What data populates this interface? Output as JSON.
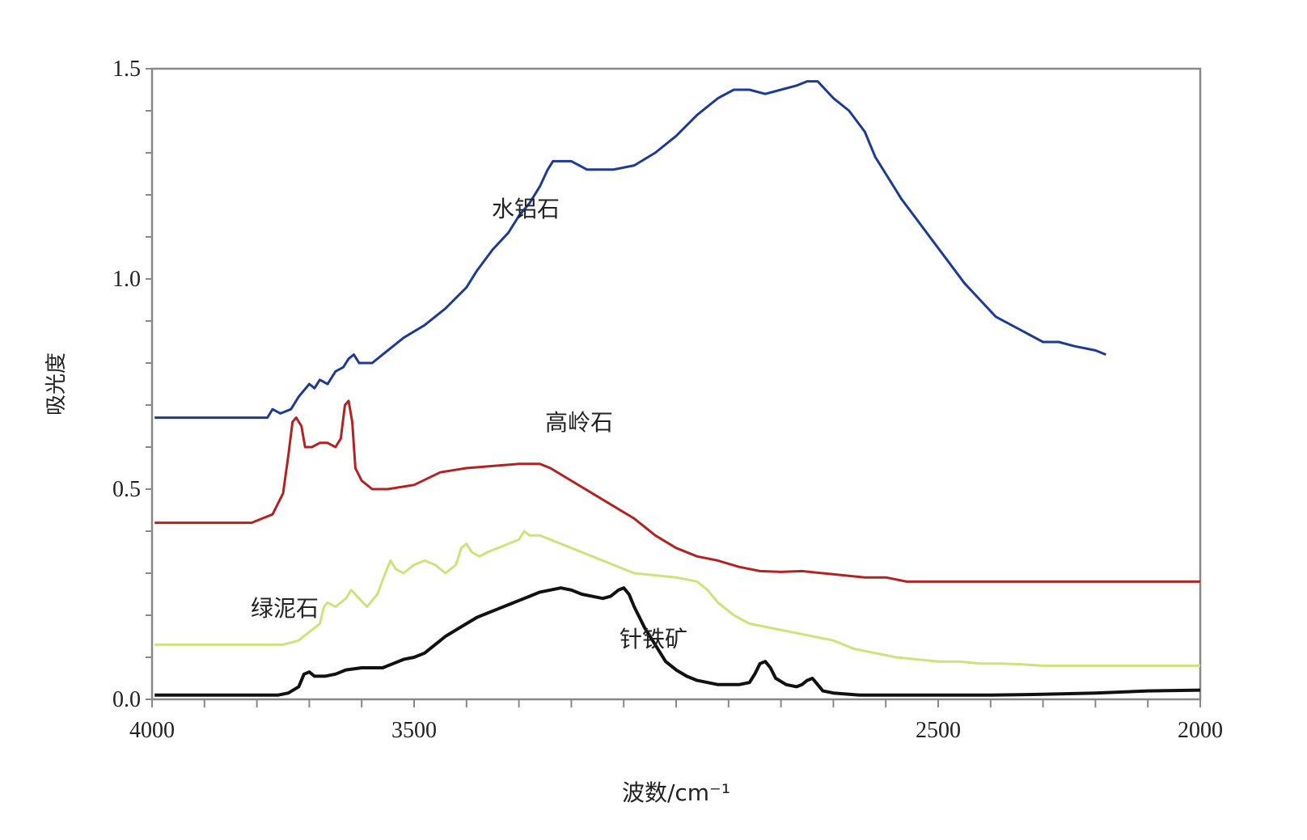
{
  "chart_data": {
    "type": "line",
    "xlabel": "波数/cm⁻¹",
    "ylabel": "吸光度",
    "xlim": [
      4000,
      2000
    ],
    "ylim": [
      0,
      1.5
    ],
    "x_ticks": [
      "4000",
      "3500",
      "2500",
      "2000"
    ],
    "y_ticks": [
      "0.0",
      "0.5",
      "1.0",
      "1.5"
    ],
    "grid": false,
    "legend": "none",
    "series": [
      {
        "name": "水铝石",
        "color": "#1f3a93",
        "points": [
          [
            3995,
            0.67
          ],
          [
            3780,
            0.67
          ],
          [
            3770,
            0.69
          ],
          [
            3755,
            0.68
          ],
          [
            3735,
            0.69
          ],
          [
            3720,
            0.72
          ],
          [
            3700,
            0.75
          ],
          [
            3690,
            0.74
          ],
          [
            3680,
            0.76
          ],
          [
            3665,
            0.75
          ],
          [
            3650,
            0.78
          ],
          [
            3635,
            0.79
          ],
          [
            3625,
            0.81
          ],
          [
            3615,
            0.82
          ],
          [
            3605,
            0.8
          ],
          [
            3580,
            0.8
          ],
          [
            3560,
            0.82
          ],
          [
            3520,
            0.86
          ],
          [
            3480,
            0.89
          ],
          [
            3440,
            0.93
          ],
          [
            3400,
            0.98
          ],
          [
            3380,
            1.02
          ],
          [
            3350,
            1.07
          ],
          [
            3320,
            1.11
          ],
          [
            3300,
            1.15
          ],
          [
            3280,
            1.18
          ],
          [
            3260,
            1.22
          ],
          [
            3245,
            1.26
          ],
          [
            3235,
            1.28
          ],
          [
            3220,
            1.28
          ],
          [
            3200,
            1.28
          ],
          [
            3185,
            1.27
          ],
          [
            3170,
            1.26
          ],
          [
            3150,
            1.26
          ],
          [
            3120,
            1.26
          ],
          [
            3080,
            1.27
          ],
          [
            3040,
            1.3
          ],
          [
            3000,
            1.34
          ],
          [
            2960,
            1.39
          ],
          [
            2920,
            1.43
          ],
          [
            2890,
            1.45
          ],
          [
            2860,
            1.45
          ],
          [
            2830,
            1.44
          ],
          [
            2800,
            1.45
          ],
          [
            2770,
            1.46
          ],
          [
            2750,
            1.47
          ],
          [
            2730,
            1.47
          ],
          [
            2715,
            1.45
          ],
          [
            2700,
            1.43
          ],
          [
            2670,
            1.4
          ],
          [
            2640,
            1.35
          ],
          [
            2620,
            1.29
          ],
          [
            2600,
            1.25
          ],
          [
            2570,
            1.19
          ],
          [
            2540,
            1.14
          ],
          [
            2510,
            1.09
          ],
          [
            2480,
            1.04
          ],
          [
            2450,
            0.99
          ],
          [
            2420,
            0.95
          ],
          [
            2390,
            0.91
          ],
          [
            2360,
            0.89
          ],
          [
            2330,
            0.87
          ],
          [
            2300,
            0.85
          ],
          [
            2270,
            0.85
          ],
          [
            2240,
            0.84
          ],
          [
            2200,
            0.83
          ],
          [
            2180,
            0.82
          ]
        ]
      },
      {
        "name": "高岭石",
        "color": "#b22222",
        "points": [
          [
            3995,
            0.42
          ],
          [
            3810,
            0.42
          ],
          [
            3790,
            0.43
          ],
          [
            3770,
            0.44
          ],
          [
            3750,
            0.49
          ],
          [
            3740,
            0.58
          ],
          [
            3732,
            0.66
          ],
          [
            3725,
            0.67
          ],
          [
            3715,
            0.65
          ],
          [
            3708,
            0.6
          ],
          [
            3695,
            0.6
          ],
          [
            3680,
            0.61
          ],
          [
            3665,
            0.61
          ],
          [
            3650,
            0.6
          ],
          [
            3640,
            0.62
          ],
          [
            3632,
            0.7
          ],
          [
            3625,
            0.71
          ],
          [
            3618,
            0.66
          ],
          [
            3612,
            0.55
          ],
          [
            3600,
            0.52
          ],
          [
            3580,
            0.5
          ],
          [
            3550,
            0.5
          ],
          [
            3500,
            0.51
          ],
          [
            3450,
            0.54
          ],
          [
            3400,
            0.55
          ],
          [
            3350,
            0.555
          ],
          [
            3300,
            0.56
          ],
          [
            3260,
            0.56
          ],
          [
            3240,
            0.55
          ],
          [
            3200,
            0.52
          ],
          [
            3160,
            0.49
          ],
          [
            3120,
            0.46
          ],
          [
            3080,
            0.43
          ],
          [
            3040,
            0.39
          ],
          [
            3000,
            0.36
          ],
          [
            2960,
            0.34
          ],
          [
            2920,
            0.33
          ],
          [
            2880,
            0.315
          ],
          [
            2840,
            0.305
          ],
          [
            2800,
            0.303
          ],
          [
            2760,
            0.305
          ],
          [
            2720,
            0.3
          ],
          [
            2680,
            0.295
          ],
          [
            2640,
            0.29
          ],
          [
            2600,
            0.29
          ],
          [
            2560,
            0.28
          ],
          [
            2520,
            0.28
          ],
          [
            2480,
            0.28
          ],
          [
            2440,
            0.28
          ],
          [
            2400,
            0.28
          ],
          [
            2360,
            0.28
          ],
          [
            2320,
            0.28
          ],
          [
            2280,
            0.28
          ],
          [
            2240,
            0.28
          ],
          [
            2200,
            0.28
          ],
          [
            2000,
            0.28
          ]
        ]
      },
      {
        "name": "绿泥石",
        "color": "#cde37a",
        "points": [
          [
            3995,
            0.13
          ],
          [
            3750,
            0.13
          ],
          [
            3720,
            0.14
          ],
          [
            3700,
            0.16
          ],
          [
            3680,
            0.18
          ],
          [
            3672,
            0.22
          ],
          [
            3665,
            0.23
          ],
          [
            3650,
            0.22
          ],
          [
            3630,
            0.24
          ],
          [
            3620,
            0.26
          ],
          [
            3605,
            0.24
          ],
          [
            3590,
            0.22
          ],
          [
            3570,
            0.25
          ],
          [
            3555,
            0.3
          ],
          [
            3545,
            0.33
          ],
          [
            3535,
            0.31
          ],
          [
            3520,
            0.3
          ],
          [
            3500,
            0.32
          ],
          [
            3480,
            0.33
          ],
          [
            3460,
            0.32
          ],
          [
            3440,
            0.3
          ],
          [
            3420,
            0.32
          ],
          [
            3410,
            0.36
          ],
          [
            3400,
            0.37
          ],
          [
            3390,
            0.35
          ],
          [
            3375,
            0.34
          ],
          [
            3360,
            0.35
          ],
          [
            3340,
            0.36
          ],
          [
            3320,
            0.37
          ],
          [
            3300,
            0.38
          ],
          [
            3290,
            0.4
          ],
          [
            3280,
            0.39
          ],
          [
            3260,
            0.39
          ],
          [
            3240,
            0.38
          ],
          [
            3200,
            0.36
          ],
          [
            3160,
            0.34
          ],
          [
            3120,
            0.32
          ],
          [
            3080,
            0.3
          ],
          [
            3040,
            0.295
          ],
          [
            3000,
            0.29
          ],
          [
            2960,
            0.28
          ],
          [
            2940,
            0.26
          ],
          [
            2920,
            0.23
          ],
          [
            2890,
            0.2
          ],
          [
            2860,
            0.18
          ],
          [
            2820,
            0.17
          ],
          [
            2780,
            0.16
          ],
          [
            2740,
            0.15
          ],
          [
            2700,
            0.14
          ],
          [
            2660,
            0.12
          ],
          [
            2620,
            0.11
          ],
          [
            2580,
            0.1
          ],
          [
            2540,
            0.095
          ],
          [
            2500,
            0.09
          ],
          [
            2460,
            0.09
          ],
          [
            2420,
            0.085
          ],
          [
            2380,
            0.085
          ],
          [
            2340,
            0.083
          ],
          [
            2300,
            0.08
          ],
          [
            2260,
            0.08
          ],
          [
            2200,
            0.08
          ],
          [
            2100,
            0.08
          ],
          [
            2000,
            0.08
          ]
        ]
      },
      {
        "name": "针铁矿",
        "color": "#111111",
        "points": [
          [
            3995,
            0.01
          ],
          [
            3900,
            0.01
          ],
          [
            3800,
            0.01
          ],
          [
            3760,
            0.01
          ],
          [
            3740,
            0.015
          ],
          [
            3720,
            0.03
          ],
          [
            3710,
            0.06
          ],
          [
            3700,
            0.065
          ],
          [
            3690,
            0.055
          ],
          [
            3670,
            0.055
          ],
          [
            3650,
            0.06
          ],
          [
            3630,
            0.07
          ],
          [
            3600,
            0.075
          ],
          [
            3560,
            0.075
          ],
          [
            3540,
            0.085
          ],
          [
            3520,
            0.095
          ],
          [
            3500,
            0.1
          ],
          [
            3480,
            0.11
          ],
          [
            3460,
            0.13
          ],
          [
            3440,
            0.15
          ],
          [
            3420,
            0.165
          ],
          [
            3400,
            0.18
          ],
          [
            3380,
            0.195
          ],
          [
            3360,
            0.205
          ],
          [
            3340,
            0.215
          ],
          [
            3320,
            0.225
          ],
          [
            3300,
            0.235
          ],
          [
            3280,
            0.245
          ],
          [
            3260,
            0.255
          ],
          [
            3240,
            0.26
          ],
          [
            3220,
            0.265
          ],
          [
            3200,
            0.26
          ],
          [
            3180,
            0.25
          ],
          [
            3160,
            0.245
          ],
          [
            3140,
            0.24
          ],
          [
            3125,
            0.245
          ],
          [
            3110,
            0.26
          ],
          [
            3100,
            0.265
          ],
          [
            3090,
            0.25
          ],
          [
            3080,
            0.22
          ],
          [
            3060,
            0.17
          ],
          [
            3040,
            0.13
          ],
          [
            3020,
            0.09
          ],
          [
            3000,
            0.07
          ],
          [
            2980,
            0.055
          ],
          [
            2960,
            0.045
          ],
          [
            2940,
            0.04
          ],
          [
            2920,
            0.035
          ],
          [
            2900,
            0.035
          ],
          [
            2880,
            0.035
          ],
          [
            2860,
            0.04
          ],
          [
            2850,
            0.06
          ],
          [
            2840,
            0.085
          ],
          [
            2830,
            0.09
          ],
          [
            2820,
            0.075
          ],
          [
            2810,
            0.05
          ],
          [
            2790,
            0.035
          ],
          [
            2770,
            0.03
          ],
          [
            2760,
            0.035
          ],
          [
            2750,
            0.045
          ],
          [
            2740,
            0.05
          ],
          [
            2730,
            0.035
          ],
          [
            2720,
            0.02
          ],
          [
            2700,
            0.015
          ],
          [
            2650,
            0.01
          ],
          [
            2600,
            0.01
          ],
          [
            2500,
            0.01
          ],
          [
            2400,
            0.01
          ],
          [
            2300,
            0.012
          ],
          [
            2200,
            0.015
          ],
          [
            2100,
            0.02
          ],
          [
            2000,
            0.022
          ]
        ]
      }
    ],
    "series_label_positions": {}
  }
}
